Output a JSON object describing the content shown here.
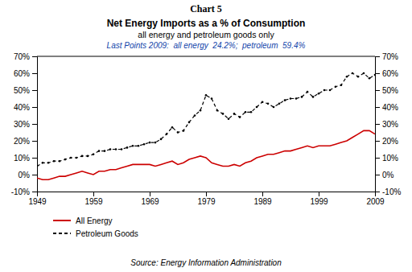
{
  "chart_data": {
    "type": "line",
    "caption": "Chart 5",
    "title": "Net Energy Imports as a % of Consumption",
    "subtitle": "all energy and petroleum goods only",
    "annotations": [
      "Last Points 2009:  all energy  24.2%;  petroleum  59.4%"
    ],
    "source": "Source: Energy Information Administration",
    "x": [
      1949,
      1950,
      1951,
      1952,
      1953,
      1954,
      1955,
      1956,
      1957,
      1958,
      1959,
      1960,
      1961,
      1962,
      1963,
      1964,
      1965,
      1966,
      1967,
      1968,
      1969,
      1970,
      1971,
      1972,
      1973,
      1974,
      1975,
      1976,
      1977,
      1978,
      1979,
      1980,
      1981,
      1982,
      1983,
      1984,
      1985,
      1986,
      1987,
      1988,
      1989,
      1990,
      1991,
      1992,
      1993,
      1994,
      1995,
      1996,
      1997,
      1998,
      1999,
      2000,
      2001,
      2002,
      2003,
      2004,
      2005,
      2006,
      2007,
      2008,
      2009
    ],
    "series": [
      {
        "name": "All Energy",
        "color": "#cc0000",
        "line_style": "solid",
        "values": [
          -2,
          -3,
          -3,
          -2,
          -1,
          -1,
          0,
          1,
          2,
          1,
          0,
          2,
          2,
          3,
          3,
          4,
          5,
          6,
          6,
          6,
          6,
          5,
          6,
          7,
          8,
          6,
          7,
          9,
          10,
          11,
          10,
          7,
          6,
          5,
          5,
          6,
          5,
          7,
          8,
          10,
          11,
          12,
          12,
          13,
          14,
          14,
          15,
          16,
          17,
          16,
          17,
          17,
          17,
          18,
          19,
          20,
          22,
          24,
          26,
          26,
          24
        ]
      },
      {
        "name": "Petroleum Goods",
        "color": "#000000",
        "line_style": "dashed",
        "marker": "point",
        "values": [
          5,
          7,
          7,
          8,
          8,
          9,
          10,
          10,
          11,
          11,
          12,
          14,
          14,
          15,
          15,
          15,
          16,
          17,
          17,
          18,
          19,
          19,
          21,
          24,
          28,
          25,
          26,
          31,
          35,
          38,
          47,
          45,
          38,
          36,
          33,
          36,
          34,
          37,
          37,
          40,
          43,
          42,
          40,
          42,
          44,
          45,
          45,
          46,
          49,
          46,
          48,
          50,
          50,
          52,
          53,
          58,
          60,
          58,
          60,
          57,
          59
        ]
      }
    ],
    "xlim": [
      1949,
      2009
    ],
    "xticks": [
      1949,
      1959,
      1969,
      1979,
      1989,
      1999,
      2009
    ],
    "ylim": [
      -10,
      70
    ],
    "yticks": [
      {
        "value": -10,
        "label": "-10%"
      },
      {
        "value": 0,
        "label": "0%"
      },
      {
        "value": 10,
        "label": "10%"
      },
      {
        "value": 20,
        "label": "20%"
      },
      {
        "value": 30,
        "label": "30%"
      },
      {
        "value": 40,
        "label": "40%"
      },
      {
        "value": 50,
        "label": "50%"
      },
      {
        "value": 60,
        "label": "60%"
      },
      {
        "value": 70,
        "label": "70%"
      }
    ],
    "y2lim": [
      -10,
      70
    ],
    "y2ticks": [
      {
        "value": -10,
        "label": "-10%"
      },
      {
        "value": 0,
        "label": "0%"
      },
      {
        "value": 10,
        "label": "10%"
      },
      {
        "value": 20,
        "label": "20%"
      },
      {
        "value": 30,
        "label": "30%"
      },
      {
        "value": 40,
        "label": "40%"
      },
      {
        "value": 50,
        "label": "50%"
      },
      {
        "value": 60,
        "label": "60%"
      },
      {
        "value": 70,
        "label": "70%"
      }
    ],
    "legend": "bottom",
    "grid": false
  }
}
